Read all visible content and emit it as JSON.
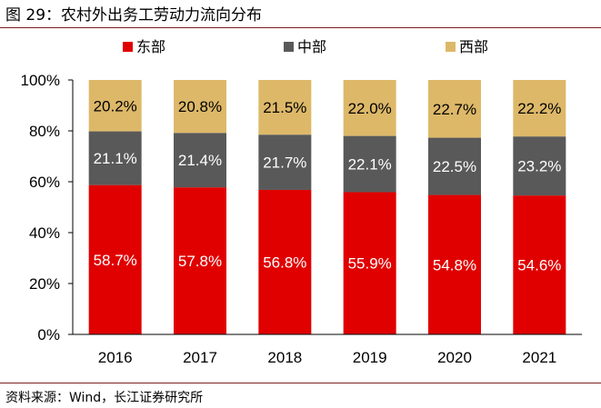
{
  "figure": {
    "title": "图 29：农村外出务工劳动力流向分布",
    "source": "资料来源：Wind，长江证券研究所"
  },
  "chart_data": {
    "type": "bar",
    "stacked": true,
    "title": "农村外出务工劳动力流向分布",
    "xlabel": "",
    "ylabel": "",
    "ylim": [
      0,
      100
    ],
    "y_ticks": [
      "0%",
      "20%",
      "40%",
      "60%",
      "80%",
      "100%"
    ],
    "categories": [
      "2016",
      "2017",
      "2018",
      "2019",
      "2020",
      "2021"
    ],
    "series": [
      {
        "name": "东部",
        "color": "#e00000",
        "values": [
          58.7,
          57.8,
          56.8,
          55.9,
          54.8,
          54.6
        ],
        "labels": [
          "58.7%",
          "57.8%",
          "56.8%",
          "55.9%",
          "54.8%",
          "54.6%"
        ],
        "label_color": "#ffffff"
      },
      {
        "name": "中部",
        "color": "#595959",
        "values": [
          21.1,
          21.4,
          21.7,
          22.1,
          22.5,
          23.2
        ],
        "labels": [
          "21.1%",
          "21.4%",
          "21.7%",
          "22.1%",
          "22.5%",
          "23.2%"
        ],
        "label_color": "#ffffff"
      },
      {
        "name": "西部",
        "color": "#ddb869",
        "values": [
          20.2,
          20.8,
          21.5,
          22.0,
          22.7,
          22.2
        ],
        "labels": [
          "20.2%",
          "20.8%",
          "21.5%",
          "22.0%",
          "22.7%",
          "22.2%"
        ],
        "label_color": "#000000"
      }
    ],
    "legend_position": "top"
  }
}
